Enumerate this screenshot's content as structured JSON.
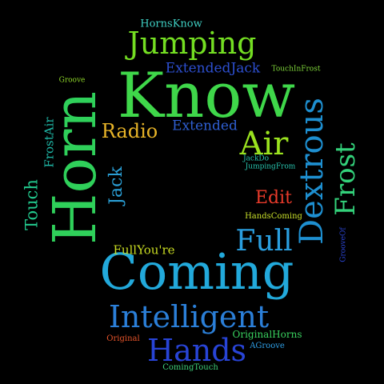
{
  "words": {
    "know": {
      "text": "Know",
      "color": "#3fd74a"
    },
    "horn": {
      "text": "Horn",
      "color": "#2fd05a"
    },
    "coming": {
      "text": "Coming",
      "color": "#22a9db"
    },
    "jumping": {
      "text": "Jumping",
      "color": "#74de22"
    },
    "dextrous": {
      "text": "Dextrous",
      "color": "#1e8fd0"
    },
    "frost": {
      "text": "Frost",
      "color": "#33d17a"
    },
    "intelligent": {
      "text": "Intelligent",
      "color": "#2b7fd8"
    },
    "hands": {
      "text": "Hands",
      "color": "#2844d6"
    },
    "air": {
      "text": "Air",
      "color": "#9ae21f"
    },
    "full": {
      "text": "Full",
      "color": "#2a9fe0"
    },
    "radio": {
      "text": "Radio",
      "color": "#e8b428"
    },
    "extended": {
      "text": "Extended",
      "color": "#2f5fd2"
    },
    "extendedjack": {
      "text": "ExtendedJack",
      "color": "#2d4fd0"
    },
    "hornsknow": {
      "text": "HornsKnow",
      "color": "#3fd0c4"
    },
    "edit": {
      "text": "Edit",
      "color": "#e83a2a"
    },
    "jack": {
      "text": "Jack",
      "color": "#2a9fd6"
    },
    "touch": {
      "text": "Touch",
      "color": "#22c98d"
    },
    "frostair": {
      "text": "FrostAir",
      "color": "#1fb9a8"
    },
    "fullyoure": {
      "text": "FullYou're",
      "color": "#c9dc22"
    },
    "originalhorns": {
      "text": "OriginalHorns",
      "color": "#39d25f"
    },
    "agroove": {
      "text": "AGroove",
      "color": "#2f9fe6"
    },
    "original": {
      "text": "Original",
      "color": "#e8542a"
    },
    "comingtouch": {
      "text": "ComingTouch",
      "color": "#3fd07a"
    },
    "handscoming": {
      "text": "HandsComing",
      "color": "#c9e02a"
    },
    "jackdo": {
      "text": "JackDo",
      "color": "#28c6b0"
    },
    "jumpingfrom": {
      "text": "JumpingFrom",
      "color": "#28c6b0"
    },
    "groove": {
      "text": "Groove",
      "color": "#8fd72a"
    },
    "touchinfrost": {
      "text": "TouchInFrost",
      "color": "#7fd63a"
    },
    "grooveof": {
      "text": "GrooveOf",
      "color": "#2b46d6"
    }
  }
}
